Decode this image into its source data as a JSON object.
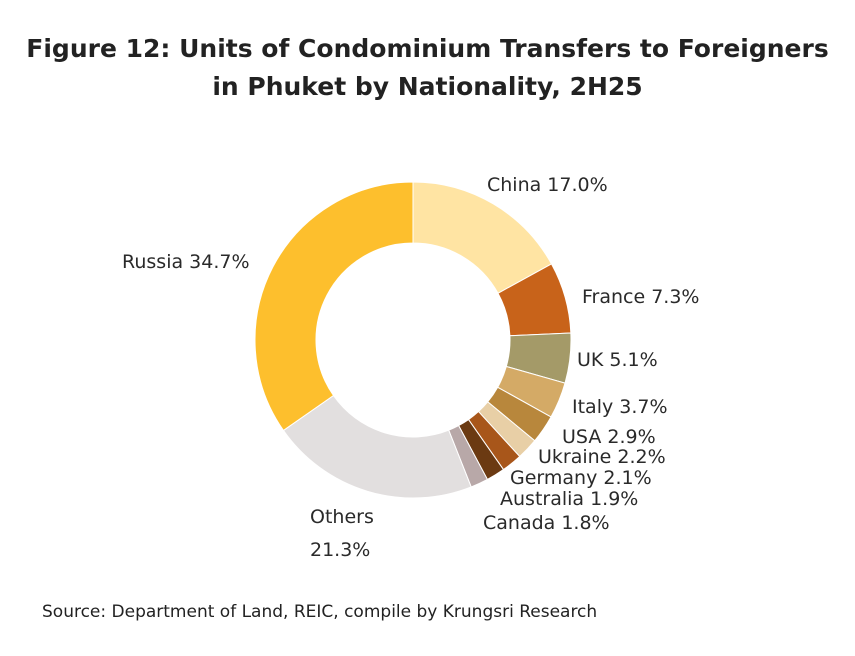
{
  "title_line1": "Figure 12: Units of Condominium Transfers to Foreigners",
  "title_line2": "in Phuket by Nationality, 2H25",
  "source": "Source: Department of Land, REIC, compile by Krungsri Research",
  "chart_data": {
    "type": "pie",
    "donut": true,
    "title": "Figure 12: Units of Condominium Transfers to Foreigners in Phuket by Nationality, 2H25",
    "unit": "%",
    "slices": [
      {
        "name": "China",
        "value": 17.0,
        "label": "China 17.0%",
        "color": "#FFE4A3"
      },
      {
        "name": "France",
        "value": 7.3,
        "label": "France 7.3%",
        "color": "#C8631A"
      },
      {
        "name": "UK",
        "value": 5.1,
        "label": "UK 5.1%",
        "color": "#A49A68"
      },
      {
        "name": "Italy",
        "value": 3.7,
        "label": "Italy 3.7%",
        "color": "#D4AA66"
      },
      {
        "name": "USA",
        "value": 2.9,
        "label": "USA 2.9%",
        "color": "#B8873C"
      },
      {
        "name": "Ukraine",
        "value": 2.2,
        "label": "Ukraine 2.2%",
        "color": "#E8CFA6"
      },
      {
        "name": "Germany",
        "value": 2.1,
        "label": "Germany 2.1%",
        "color": "#A8561A"
      },
      {
        "name": "Australia",
        "value": 1.9,
        "label": "Australia 1.9%",
        "color": "#6B3A12"
      },
      {
        "name": "Canada",
        "value": 1.8,
        "label": "Canada 1.8%",
        "color": "#B8A8A8"
      },
      {
        "name": "Others",
        "value": 21.3,
        "label_lines": [
          "Others",
          "21.3%"
        ],
        "color": "#E2DFDF"
      },
      {
        "name": "Russia",
        "value": 34.7,
        "label": "Russia 34.7%",
        "color": "#FDBF2D"
      }
    ]
  }
}
